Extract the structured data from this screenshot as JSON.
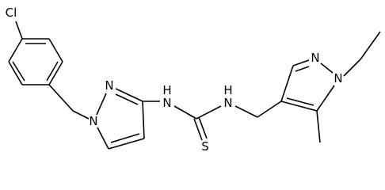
{
  "atoms": [
    {
      "label": "Cl"
    },
    {
      "label": "N"
    },
    {
      "label": "N"
    },
    {
      "label": "N",
      "h": "H"
    },
    {
      "label": "S"
    },
    {
      "label": "N",
      "h": "H"
    },
    {
      "label": "N"
    },
    {
      "label": "N"
    }
  ]
}
